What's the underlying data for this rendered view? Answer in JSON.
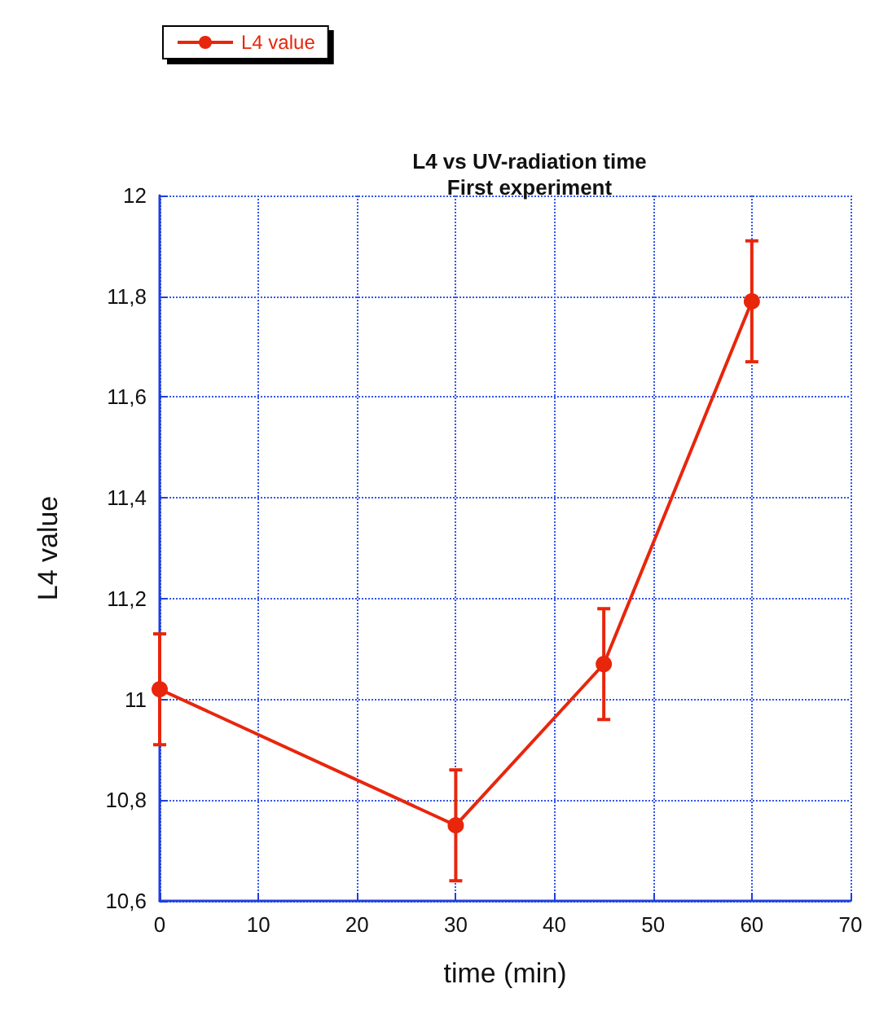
{
  "chart_data": {
    "type": "line",
    "title": "L4 vs UV-radiation time\nFirst experiment",
    "xlabel": "time (min)",
    "ylabel": "L4 value",
    "x": [
      0,
      30,
      45,
      60
    ],
    "series": [
      {
        "name": "L4 value",
        "color": "#e8260c",
        "values": [
          11.02,
          10.75,
          11.07,
          11.79
        ],
        "errors": [
          0.11,
          0.11,
          0.11,
          0.12
        ]
      }
    ],
    "xlim": [
      0,
      70
    ],
    "xticks": [
      0,
      10,
      20,
      30,
      40,
      50,
      60,
      70
    ],
    "ylim": [
      10.6,
      12
    ],
    "yticks": [
      {
        "value": 10.6,
        "label": "10,6"
      },
      {
        "value": 10.8,
        "label": "10,8"
      },
      {
        "value": 11,
        "label": "11"
      },
      {
        "value": 11.2,
        "label": "11,2"
      },
      {
        "value": 11.4,
        "label": "11,4"
      },
      {
        "value": 11.6,
        "label": "11,6"
      },
      {
        "value": 11.8,
        "label": "11,8"
      },
      {
        "value": 12,
        "label": "12"
      }
    ],
    "grid": true,
    "legend": "top left",
    "marker": "circle",
    "line_style": "solid"
  }
}
